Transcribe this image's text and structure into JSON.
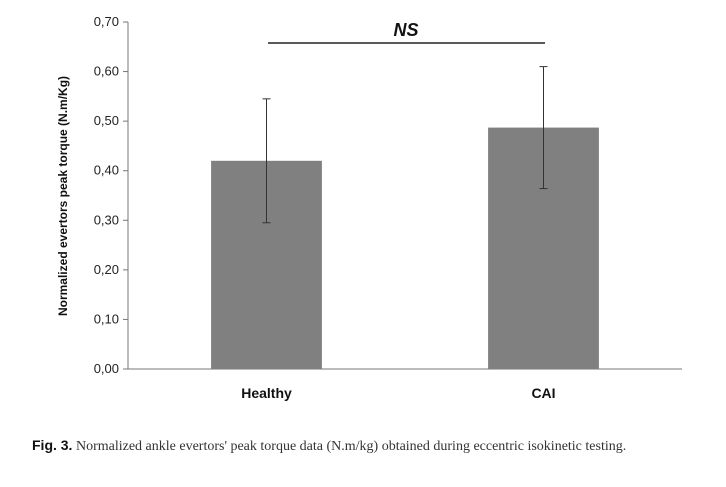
{
  "chart_data": {
    "type": "bar",
    "categories": [
      "Healthy",
      "CAI"
    ],
    "values": [
      0.42,
      0.487
    ],
    "error": [
      0.125,
      0.123
    ],
    "ylabel": "Normalized evertors peak torque (N.m/Kg)",
    "xlabel": "",
    "ylim": [
      0,
      0.7
    ],
    "yticks": [
      0,
      0.1,
      0.2,
      0.3,
      0.4,
      0.5,
      0.6,
      0.7
    ],
    "ytick_labels": [
      "0,00",
      "0,10",
      "0,20",
      "0,30",
      "0,40",
      "0,50",
      "0,60",
      "0,70"
    ],
    "bar_color": "#808080",
    "annotation": "NS",
    "grid": false
  },
  "caption": {
    "label": "Fig. 3.",
    "text": "Normalized ankle evertors' peak torque data (N.m/kg) obtained during eccentric isokinetic testing."
  }
}
